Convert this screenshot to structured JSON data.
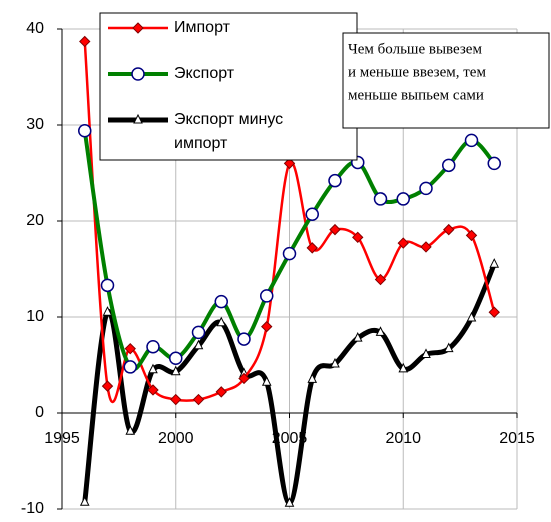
{
  "chart_data": {
    "type": "line",
    "x": [
      1996,
      1997,
      1998,
      1999,
      2000,
      2001,
      2002,
      2003,
      2004,
      2005,
      2006,
      2007,
      2008,
      2009,
      2010,
      2011,
      2012,
      2013,
      2014
    ],
    "series": [
      {
        "name": "Импорт",
        "color": "#ff0000",
        "marker": "diamond",
        "values": [
          38.7,
          2.8,
          6.7,
          2.4,
          1.4,
          1.4,
          2.2,
          3.6,
          9.0,
          26.0,
          17.2,
          19.1,
          18.3,
          13.9,
          17.7,
          17.3,
          19.1,
          18.5,
          10.5
        ]
      },
      {
        "name": "Экспорт",
        "color": "#008000",
        "marker": "circle",
        "values": [
          29.4,
          13.3,
          4.8,
          6.9,
          5.7,
          8.4,
          11.6,
          7.7,
          12.2,
          16.6,
          20.7,
          24.2,
          26.1,
          22.3,
          22.3,
          23.4,
          25.8,
          28.4,
          26.0
        ]
      },
      {
        "name": "Экспорт минус импорт",
        "color": "#000000",
        "marker": "triangle",
        "values": [
          -9.3,
          10.5,
          -1.9,
          4.5,
          4.3,
          7.0,
          9.4,
          4.1,
          3.2,
          -9.4,
          3.5,
          5.1,
          7.8,
          8.4,
          4.6,
          6.1,
          6.7,
          9.9,
          15.5
        ]
      }
    ],
    "annotation": [
      "Чем больше вывезем",
      "и меньше ввезем, тем",
      "меньше выпьем сами"
    ],
    "xlim": [
      1995,
      2015
    ],
    "xticks": [
      1995,
      2000,
      2005,
      2010,
      2015
    ],
    "ylim": [
      -10,
      40
    ],
    "yticks": [
      -10,
      0,
      10,
      20,
      30,
      40
    ],
    "grid": true
  }
}
